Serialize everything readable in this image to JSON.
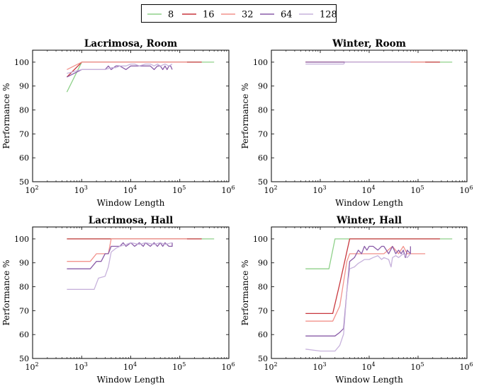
{
  "legend": {
    "position": "top-center",
    "entries": [
      {
        "label": "8",
        "color": "#8fd18a"
      },
      {
        "label": "16",
        "color": "#c8373d"
      },
      {
        "label": "32",
        "color": "#f2928c"
      },
      {
        "label": "64",
        "color": "#8a5ca8"
      },
      {
        "label": "128",
        "color": "#c7b2dc"
      }
    ]
  },
  "chart_data": [
    {
      "type": "line",
      "title": "Lacrimosa, Room",
      "xlabel": "Window Length",
      "ylabel": "Performance %",
      "xscale": "log",
      "xlim": [
        100,
        1000000
      ],
      "ylim": [
        50,
        105
      ],
      "xticks": [
        {
          "value": 100,
          "base": "10",
          "exp": "2"
        },
        {
          "value": 1000,
          "base": "10",
          "exp": "3"
        },
        {
          "value": 10000,
          "base": "10",
          "exp": "4"
        },
        {
          "value": 100000,
          "base": "10",
          "exp": "5"
        },
        {
          "value": 1000000,
          "base": "10",
          "exp": "6"
        }
      ],
      "yticks": [
        "50",
        "60",
        "70",
        "80",
        "90",
        "100"
      ],
      "series": [
        {
          "name": "8",
          "color": "#8fd18a",
          "x": [
            500,
            1000,
            2000,
            500000
          ],
          "y": [
            87.5,
            100,
            100,
            100
          ]
        },
        {
          "name": "16",
          "color": "#c8373d",
          "x": [
            500,
            1000,
            2000,
            280000
          ],
          "y": [
            93.8,
            100,
            100,
            100
          ]
        },
        {
          "name": "32",
          "color": "#f2928c",
          "x": [
            500,
            1000,
            2000,
            140000
          ],
          "y": [
            96.9,
            100,
            100,
            100
          ]
        },
        {
          "name": "64",
          "color": "#8a5ca8",
          "x": [
            500,
            1000,
            2000,
            3000,
            3500,
            4000,
            5000,
            6000,
            8000,
            10000,
            12000,
            15000,
            20000,
            25000,
            30000,
            35000,
            40000,
            45000,
            50000,
            55000,
            60000,
            65000,
            70000
          ],
          "y": [
            93.8,
            96.9,
            96.9,
            96.9,
            98.4,
            96.9,
            98.4,
            98.4,
            96.9,
            98.4,
            98.4,
            98.4,
            98.4,
            98.4,
            96.9,
            98.4,
            98.4,
            96.9,
            98.4,
            96.9,
            98.4,
            98.4,
            96.9
          ]
        },
        {
          "name": "128",
          "color": "#c7b2dc",
          "x": [
            500,
            1000,
            2000,
            3000,
            4000,
            5000,
            6000,
            8000,
            10000,
            12000,
            15000,
            20000,
            25000,
            30000,
            35000,
            40000,
            50000,
            60000,
            70000
          ],
          "y": [
            95.3,
            96.9,
            96.9,
            96.9,
            97.7,
            97.7,
            98.4,
            98.4,
            99.2,
            99.2,
            98.4,
            99.2,
            99.2,
            98.4,
            99.2,
            98.4,
            99.2,
            98.4,
            99.2
          ]
        }
      ]
    },
    {
      "type": "line",
      "title": "Winter, Room",
      "xlabel": "Window Length",
      "ylabel": "Performance %",
      "xscale": "log",
      "xlim": [
        100,
        1000000
      ],
      "ylim": [
        50,
        105
      ],
      "xticks": [
        {
          "value": 100,
          "base": "10",
          "exp": "2"
        },
        {
          "value": 1000,
          "base": "10",
          "exp": "3"
        },
        {
          "value": 10000,
          "base": "10",
          "exp": "4"
        },
        {
          "value": 100000,
          "base": "10",
          "exp": "5"
        },
        {
          "value": 1000000,
          "base": "10",
          "exp": "6"
        }
      ],
      "yticks": [
        "50",
        "60",
        "70",
        "80",
        "90",
        "100"
      ],
      "series": [
        {
          "name": "8",
          "color": "#8fd18a",
          "x": [
            500,
            500000
          ],
          "y": [
            100,
            100
          ]
        },
        {
          "name": "16",
          "color": "#c8373d",
          "x": [
            500,
            280000
          ],
          "y": [
            100,
            100
          ]
        },
        {
          "name": "32",
          "color": "#f2928c",
          "x": [
            500,
            140000
          ],
          "y": [
            100,
            100
          ]
        },
        {
          "name": "64",
          "color": "#8a5ca8",
          "x": [
            500,
            70000
          ],
          "y": [
            100,
            100
          ]
        },
        {
          "name": "128",
          "color": "#c7b2dc",
          "x": [
            500,
            3000,
            3200,
            70000
          ],
          "y": [
            99.2,
            99.2,
            100,
            100
          ]
        }
      ]
    },
    {
      "type": "line",
      "title": "Lacrimosa, Hall",
      "xlabel": "Window Length",
      "ylabel": "Performance %",
      "xscale": "log",
      "xlim": [
        100,
        1000000
      ],
      "ylim": [
        50,
        105
      ],
      "xticks": [
        {
          "value": 100,
          "base": "10",
          "exp": "2"
        },
        {
          "value": 1000,
          "base": "10",
          "exp": "3"
        },
        {
          "value": 10000,
          "base": "10",
          "exp": "4"
        },
        {
          "value": 100000,
          "base": "10",
          "exp": "5"
        },
        {
          "value": 1000000,
          "base": "10",
          "exp": "6"
        }
      ],
      "yticks": [
        "50",
        "60",
        "70",
        "80",
        "90",
        "100"
      ],
      "series": [
        {
          "name": "8",
          "color": "#8fd18a",
          "x": [
            500,
            500000
          ],
          "y": [
            100,
            100
          ]
        },
        {
          "name": "16",
          "color": "#c8373d",
          "x": [
            500,
            280000
          ],
          "y": [
            100,
            100
          ]
        },
        {
          "name": "32",
          "color": "#f2928c",
          "x": [
            500,
            1500,
            2000,
            3500,
            4000,
            140000
          ],
          "y": [
            90.6,
            90.6,
            93.8,
            93.8,
            100,
            100
          ]
        },
        {
          "name": "64",
          "color": "#8a5ca8",
          "x": [
            500,
            1500,
            2000,
            2500,
            3000,
            3500,
            4000,
            5000,
            6000,
            7000,
            8000,
            10000,
            12000,
            15000,
            18000,
            20000,
            25000,
            30000,
            35000,
            40000,
            45000,
            50000,
            60000,
            70000,
            70000
          ],
          "y": [
            87.5,
            87.5,
            90.6,
            90.6,
            93.8,
            93.8,
            96.9,
            96.9,
            96.9,
            98.4,
            96.9,
            98.4,
            96.9,
            98.4,
            96.9,
            98.4,
            96.9,
            98.4,
            96.9,
            98.4,
            96.9,
            98.4,
            96.9,
            96.9,
            98.4
          ]
        },
        {
          "name": "128",
          "color": "#c7b2dc",
          "x": [
            500,
            1800,
            2200,
            3000,
            3500,
            4000,
            5000,
            6000,
            8000,
            10000,
            15000,
            20000,
            30000,
            40000,
            50000,
            70000
          ],
          "y": [
            78.9,
            78.9,
            83.6,
            84.4,
            88.3,
            94.5,
            96.1,
            96.9,
            97.7,
            98.4,
            97.7,
            98.4,
            97.7,
            98.4,
            97.7,
            98.4
          ]
        }
      ]
    },
    {
      "type": "line",
      "title": "Winter, Hall",
      "xlabel": "Window Length",
      "ylabel": "Performance %",
      "xscale": "log",
      "xlim": [
        100,
        1000000
      ],
      "ylim": [
        50,
        105
      ],
      "xticks": [
        {
          "value": 100,
          "base": "10",
          "exp": "2"
        },
        {
          "value": 1000,
          "base": "10",
          "exp": "3"
        },
        {
          "value": 10000,
          "base": "10",
          "exp": "4"
        },
        {
          "value": 100000,
          "base": "10",
          "exp": "5"
        },
        {
          "value": 1000000,
          "base": "10",
          "exp": "6"
        }
      ],
      "yticks": [
        "50",
        "60",
        "70",
        "80",
        "90",
        "100"
      ],
      "series": [
        {
          "name": "8",
          "color": "#8fd18a",
          "x": [
            500,
            1500,
            2000,
            500000
          ],
          "y": [
            87.5,
            87.5,
            100,
            100
          ]
        },
        {
          "name": "16",
          "color": "#c8373d",
          "x": [
            500,
            1800,
            2500,
            4000,
            280000
          ],
          "y": [
            68.8,
            68.8,
            81.3,
            100,
            100
          ]
        },
        {
          "name": "32",
          "color": "#f2928c",
          "x": [
            500,
            1800,
            2500,
            3500,
            4000,
            10000,
            20000,
            30000,
            40000,
            50000,
            60000,
            140000
          ],
          "y": [
            65.6,
            65.6,
            71.9,
            90.6,
            93.8,
            93.8,
            93.8,
            96.9,
            93.8,
            96.9,
            93.8,
            93.8
          ]
        },
        {
          "name": "64",
          "color": "#8a5ca8",
          "x": [
            500,
            2000,
            2500,
            3000,
            3500,
            4000,
            5000,
            6000,
            7000,
            8000,
            9000,
            10000,
            12000,
            15000,
            18000,
            20000,
            25000,
            30000,
            35000,
            40000,
            45000,
            50000,
            55000,
            60000,
            70000,
            70000
          ],
          "y": [
            59.4,
            59.4,
            60.9,
            62.5,
            78.1,
            90.6,
            92.2,
            95.3,
            93.8,
            96.9,
            95.3,
            96.9,
            96.9,
            95.3,
            96.9,
            96.9,
            93.8,
            96.9,
            93.8,
            95.3,
            93.8,
            95.3,
            92.2,
            95.3,
            93.8,
            96.9
          ]
        },
        {
          "name": "128",
          "color": "#c7b2dc",
          "x": [
            500,
            1000,
            2000,
            2500,
            3000,
            3500,
            4000,
            5000,
            6000,
            7000,
            8000,
            10000,
            12000,
            15000,
            18000,
            20000,
            25000,
            28000,
            30000,
            35000,
            40000,
            50000,
            60000,
            70000
          ],
          "y": [
            53.9,
            53.1,
            53.1,
            55.5,
            60.2,
            78.1,
            87.5,
            88.3,
            89.8,
            90.6,
            91.4,
            91.4,
            92.2,
            93.0,
            91.4,
            92.2,
            91.4,
            88.3,
            92.2,
            93.0,
            92.2,
            93.8,
            92.2,
            93.8
          ]
        }
      ]
    }
  ]
}
